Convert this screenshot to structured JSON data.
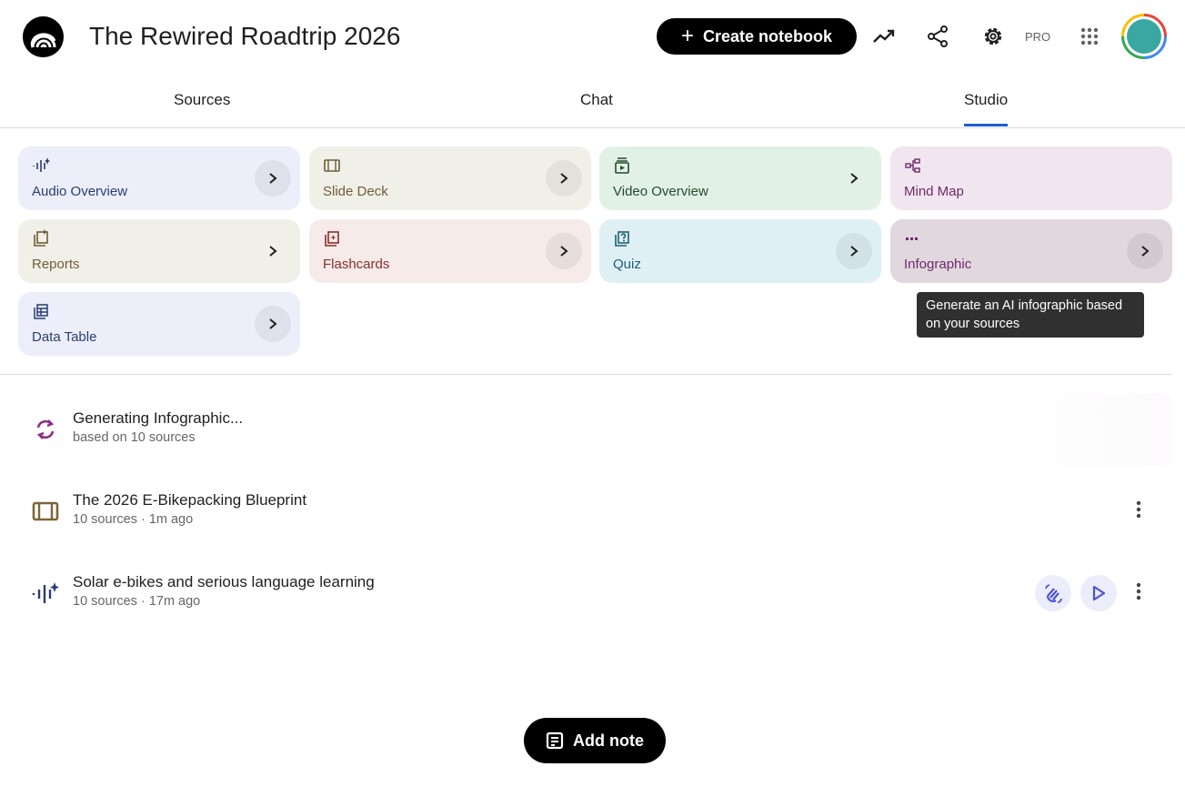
{
  "header": {
    "title": "The Rewired Roadtrip 2026",
    "create_label": "Create notebook",
    "pro_label": "PRO"
  },
  "tabs": [
    {
      "label": "Sources"
    },
    {
      "label": "Chat"
    },
    {
      "label": "Studio",
      "active": true
    }
  ],
  "tiles": [
    {
      "label": "Audio Overview",
      "icon": "audio-waveform-icon",
      "bg": "#eceef9",
      "fg": "#2a3d74"
    },
    {
      "label": "Slide Deck",
      "icon": "slides-icon",
      "bg": "#f1f0e8",
      "fg": "#6e5d38"
    },
    {
      "label": "Video Overview",
      "icon": "video-icon",
      "bg": "#e2f1e6",
      "fg": "#224d2e"
    },
    {
      "label": "Mind Map",
      "icon": "mind-map-icon",
      "bg": "#f1e6f0",
      "fg": "#6f2a6b"
    },
    {
      "label": "Reports",
      "icon": "reports-icon",
      "bg": "#f1f0e8",
      "fg": "#6e5d38"
    },
    {
      "label": "Flashcards",
      "icon": "flashcards-icon",
      "bg": "#f6ebe9",
      "fg": "#8a2f2a"
    },
    {
      "label": "Quiz",
      "icon": "quiz-icon",
      "bg": "#dff0f5",
      "fg": "#1d5f78"
    },
    {
      "label": "Infographic",
      "icon": "infographic-icon",
      "bg": "#e1d7df",
      "fg": "#6f2a6b"
    },
    {
      "label": "Data Table",
      "icon": "table-icon",
      "bg": "#eceef9",
      "fg": "#2a3d74"
    }
  ],
  "tooltip": "Generate an AI infographic based on your sources",
  "items": [
    {
      "title": "Generating Infographic...",
      "subtitle": "based on 10 sources",
      "icon": "sync-icon"
    },
    {
      "title": "The 2026 E-Bikepacking Blueprint",
      "subtitle": "10 sources · 1m ago",
      "icon": "slides-icon"
    },
    {
      "title": "Solar e-bikes and serious language learning",
      "subtitle": "10 sources · 17m ago",
      "icon": "audio-waveform-icon"
    }
  ],
  "add_note_label": "Add note",
  "colors": {
    "accent": "#1a5fd1",
    "interactive": "#4a52d6"
  }
}
